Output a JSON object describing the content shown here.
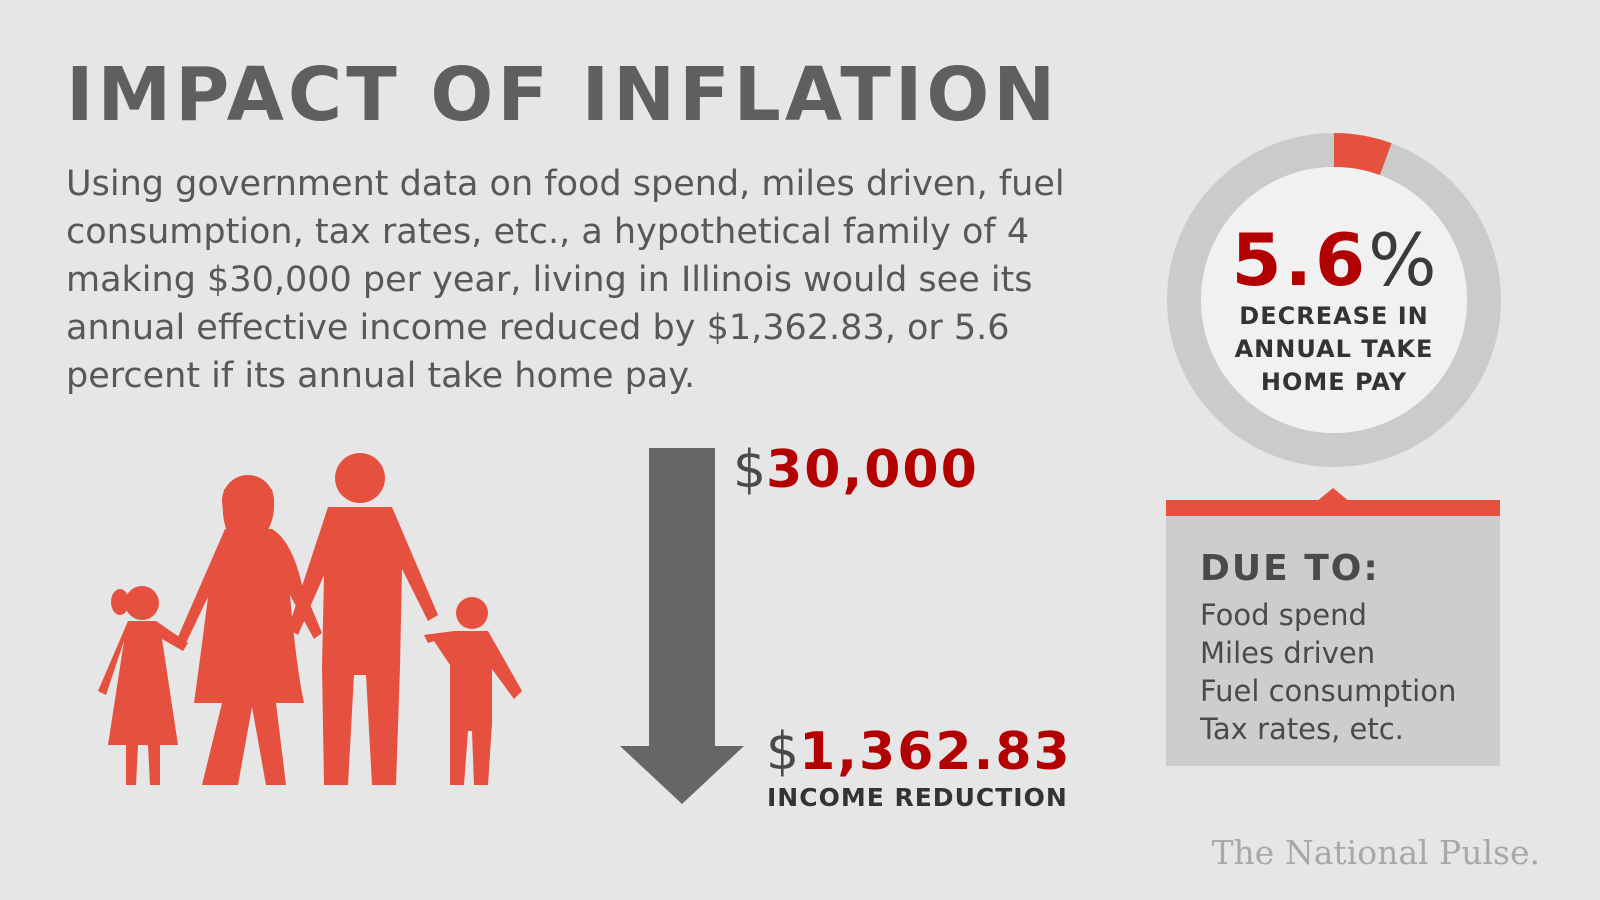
{
  "title": "IMPACT OF INFLATION",
  "description": "Using government data on food spend, miles driven, fuel consumption, tax rates, etc., a hypothetical family of 4 making $30,000 per year, living in Illinois would see its annual effective income reduced by $1,362.83, or 5.6 percent if its annual take home pay.",
  "income": {
    "currency_symbol": "$",
    "start_amount": "30,000",
    "reduction_amount": "1,362.83",
    "reduction_label": "INCOME REDUCTION"
  },
  "donut": {
    "value": "5.6",
    "unit": "%",
    "fraction": 0.056,
    "label": "DECREASE IN ANNUAL TAKE HOME PAY"
  },
  "due_to": {
    "title": "DUE TO:",
    "items": [
      "Food spend",
      "Miles driven",
      "Fuel consumption",
      "Tax rates, etc."
    ]
  },
  "brand": "The National Pulse.",
  "colors": {
    "accent_red": "#e5503f",
    "value_red": "#b30000",
    "arrow_gray": "#666666",
    "ring_gray": "#cbcbcb"
  },
  "icons": {
    "family": "family-silhouette-icon",
    "arrow": "down-arrow-icon"
  }
}
